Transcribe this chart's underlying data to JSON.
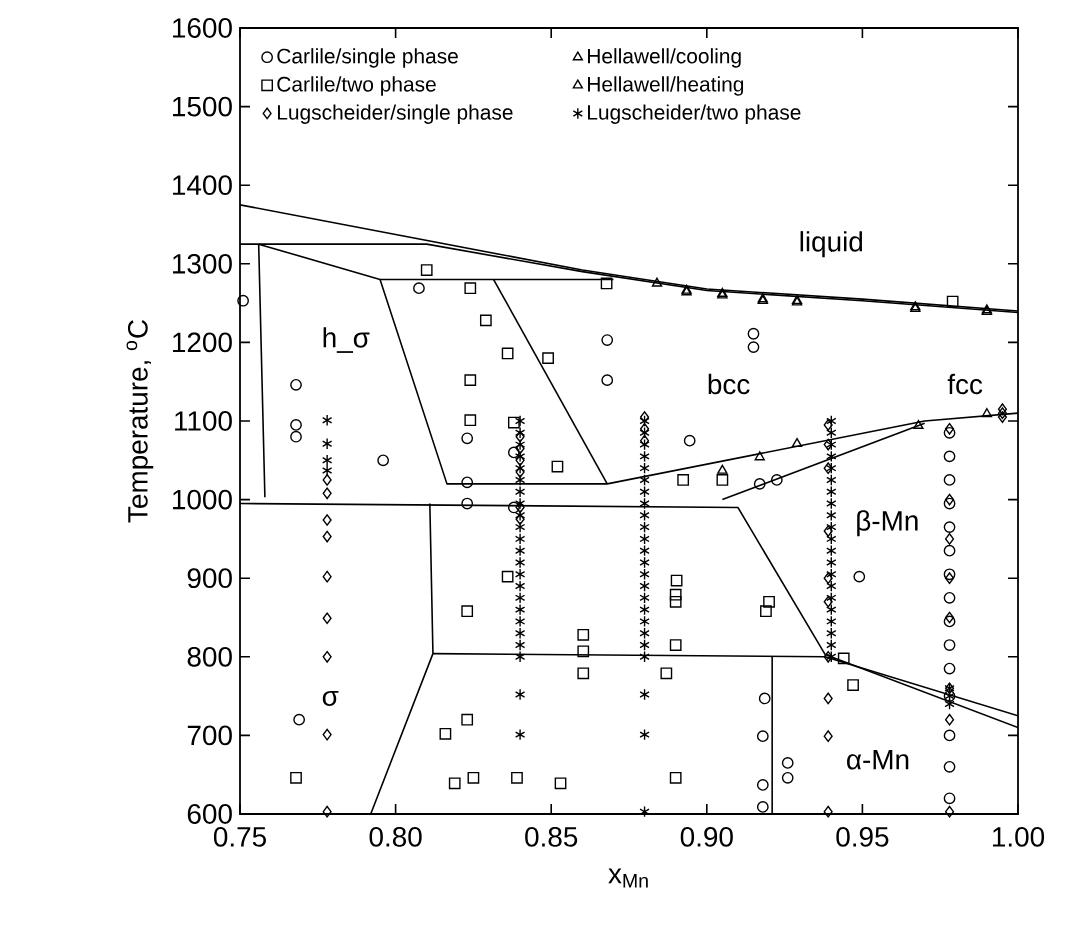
{
  "chart_data": {
    "type": "scatter",
    "xlabel": "x$_{Mn}$",
    "ylabel": "Temperature, $^{o}$C",
    "xlim": [
      0.75,
      1.0
    ],
    "ylim": [
      600,
      1600
    ],
    "xticks": [
      {
        "value": 0.75,
        "label": "0.75"
      },
      {
        "value": 0.8,
        "label": "0.80"
      },
      {
        "value": 0.85,
        "label": "0.85"
      },
      {
        "value": 0.9,
        "label": "0.90"
      },
      {
        "value": 0.95,
        "label": "0.95"
      },
      {
        "value": 1.0,
        "label": "1.00"
      }
    ],
    "yticks": [
      600,
      700,
      800,
      900,
      1000,
      1100,
      1200,
      1300,
      1400,
      1500,
      1600
    ],
    "legend": "top left",
    "grid": false,
    "series": [
      {
        "name": "Carlile/single phase",
        "marker": "circle",
        "color": "#000000",
        "x": [
          0.751,
          0.768,
          0.768,
          0.768,
          0.769,
          0.796,
          0.8075,
          0.823,
          0.823,
          0.823,
          0.838,
          0.838,
          0.868,
          0.868,
          0.915,
          0.915,
          0.8945,
          0.917,
          0.9225,
          0.949,
          0.9186,
          0.918,
          0.918,
          0.926,
          0.926,
          0.918,
          0.978,
          0.978,
          0.978,
          0.978,
          0.978,
          0.978,
          0.978,
          0.978,
          0.978,
          0.978,
          0.978,
          0.978,
          0.978,
          0.978,
          0.978
        ],
        "values": [
          1253,
          1146,
          1095,
          1080,
          720,
          1050,
          1269,
          1078,
          1022,
          995,
          1060,
          990,
          1203,
          1152,
          1211,
          1194,
          1075,
          1020,
          1025,
          902,
          747,
          699,
          637,
          665,
          646,
          609,
          1085,
          1055,
          1025,
          995,
          965,
          935,
          905,
          875,
          845,
          815,
          785,
          750,
          700,
          660,
          620
        ]
      },
      {
        "name": "Hellawell/cooling",
        "marker": "triangle",
        "color": "#000000",
        "x": [
          0.884,
          0.8935,
          0.905,
          0.918,
          0.929,
          0.967,
          0.99
        ],
        "values": [
          1275,
          1266,
          1262,
          1255,
          1253,
          1245,
          1241
        ]
      },
      {
        "name": "Carlile/two phase",
        "marker": "square",
        "color": "#000000",
        "x": [
          0.81,
          0.824,
          0.829,
          0.836,
          0.849,
          0.824,
          0.824,
          0.838,
          0.852,
          0.836,
          0.823,
          0.816,
          0.823,
          0.819,
          0.825,
          0.839,
          0.853,
          0.768,
          0.8678,
          0.979,
          0.8924,
          0.905,
          0.8903,
          0.89,
          0.92,
          0.8603,
          0.8603,
          0.8603,
          0.89,
          0.89,
          0.887,
          0.89,
          0.944,
          0.947,
          0.919
        ],
        "values": [
          1292,
          1269,
          1228,
          1186,
          1180,
          1152,
          1101,
          1098,
          1042,
          902,
          858,
          702,
          720,
          639,
          646,
          646,
          639,
          646,
          1275,
          1252,
          1025,
          1025,
          897,
          870,
          870,
          828,
          807,
          779,
          879,
          815,
          779,
          646,
          798,
          764,
          858
        ]
      },
      {
        "name": "Hellawell/heating",
        "marker": "triangle",
        "color": "#000000",
        "x": [
          0.8935,
          0.905,
          0.918,
          0.929,
          0.967,
          0.99,
          0.905,
          0.917,
          0.929,
          0.968,
          0.99
        ],
        "values": [
          1264,
          1260,
          1253,
          1251,
          1243,
          1239,
          1037,
          1054,
          1071,
          1094,
          1109
        ]
      },
      {
        "name": "Lugscheider/single phase",
        "marker": "diamond",
        "color": "#000000",
        "x": [
          0.778,
          0.778,
          0.778,
          0.778,
          0.778,
          0.778,
          0.778,
          0.778,
          0.778,
          0.84,
          0.84,
          0.84,
          0.84,
          0.84,
          0.84,
          0.88,
          0.88,
          0.88,
          0.939,
          0.939,
          0.939,
          0.939,
          0.939,
          0.939,
          0.939,
          0.939,
          0.939,
          0.939,
          0.978,
          0.978,
          0.978,
          0.978,
          0.978,
          0.978,
          0.978,
          0.978,
          0.995,
          0.995,
          0.995
        ],
        "values": [
          1025,
          1008,
          974,
          953,
          902,
          849,
          800,
          701,
          603,
          1080,
          1065,
          1050,
          1035,
          990,
          975,
          1105,
          1090,
          1075,
          1095,
          1070,
          1040,
          960,
          900,
          870,
          800,
          747,
          699,
          603,
          1090,
          1000,
          950,
          900,
          850,
          760,
          720,
          603,
          1105,
          1110,
          1115
        ]
      },
      {
        "name": "Lugscheider/two phase",
        "marker": "cross",
        "color": "#000000",
        "x": [
          0.778,
          0.778,
          0.778,
          0.778,
          0.84,
          0.84,
          0.84,
          0.84,
          0.84,
          0.84,
          0.84,
          0.84,
          0.84,
          0.84,
          0.84,
          0.84,
          0.84,
          0.84,
          0.84,
          0.84,
          0.84,
          0.84,
          0.84,
          0.84,
          0.84,
          0.84,
          0.84,
          0.88,
          0.88,
          0.88,
          0.88,
          0.88,
          0.88,
          0.88,
          0.88,
          0.88,
          0.88,
          0.88,
          0.88,
          0.88,
          0.88,
          0.88,
          0.88,
          0.88,
          0.88,
          0.88,
          0.88,
          0.88,
          0.88,
          0.88,
          0.88,
          0.94,
          0.94,
          0.94,
          0.94,
          0.94,
          0.94,
          0.94,
          0.94,
          0.94,
          0.94,
          0.94,
          0.94,
          0.94,
          0.94,
          0.94,
          0.94,
          0.94,
          0.94,
          0.94,
          0.94,
          0.94,
          0.978,
          0.978,
          0.978
        ],
        "values": [
          1101,
          1071,
          1050,
          1037,
          1100,
          1085,
          1070,
          1055,
          1040,
          1025,
          1010,
          995,
          980,
          965,
          950,
          935,
          920,
          905,
          890,
          875,
          860,
          845,
          830,
          815,
          800,
          752,
          701,
          1100,
          1085,
          1070,
          1055,
          1040,
          1025,
          1010,
          995,
          980,
          965,
          950,
          935,
          920,
          905,
          890,
          875,
          860,
          845,
          830,
          815,
          800,
          752,
          701,
          603,
          1100,
          1085,
          1070,
          1055,
          1040,
          1025,
          1010,
          995,
          980,
          965,
          950,
          935,
          920,
          905,
          890,
          875,
          860,
          845,
          830,
          815,
          800,
          760,
          750,
          740
        ]
      },
      {
        "type": "line",
        "marker": "none",
        "color": "#000000",
        "x": [
          0.75,
          0.86,
          0.9,
          0.95,
          1.0
        ],
        "values": [
          1375,
          1292,
          1268,
          1255,
          1240
        ]
      },
      {
        "type": "line",
        "marker": "none",
        "color": "#000000",
        "x": [
          0.75,
          0.81,
          0.86,
          0.9,
          0.95,
          1.0
        ],
        "values": [
          1325,
          1325,
          1290,
          1266,
          1253,
          1238
        ]
      },
      {
        "type": "line",
        "marker": "none",
        "color": "#000000",
        "x": [
          0.795,
          0.87
        ],
        "values": [
          1280,
          1280
        ]
      },
      {
        "type": "line",
        "marker": "none",
        "color": "#000000",
        "x": [
          0.756,
          0.795,
          0.8165,
          0.868,
          0.97,
          1.0
        ],
        "values": [
          1325,
          1280,
          1020,
          1020,
          1100,
          1110
        ]
      },
      {
        "type": "line",
        "marker": "none",
        "color": "#000000",
        "x": [
          0.756,
          0.758
        ],
        "values": [
          1325,
          1003
        ]
      },
      {
        "type": "line",
        "marker": "none",
        "color": "#000000",
        "x": [
          0.8315,
          0.868
        ],
        "values": [
          1280,
          1020
        ]
      },
      {
        "type": "line",
        "marker": "none",
        "color": "#000000",
        "x": [
          0.75,
          0.91,
          0.938,
          1.0
        ],
        "values": [
          995,
          990,
          803,
          710
        ]
      },
      {
        "type": "line",
        "marker": "none",
        "color": "#000000",
        "x": [
          0.905,
          0.97
        ],
        "values": [
          1000,
          1097
        ]
      },
      {
        "type": "line",
        "marker": "none",
        "color": "#000000",
        "x": [
          0.792,
          0.812,
          0.811
        ],
        "values": [
          600,
          804,
          995
        ]
      },
      {
        "type": "line",
        "marker": "none",
        "color": "#000000",
        "x": [
          0.812,
          0.938,
          1.0
        ],
        "values": [
          804,
          800,
          725
        ]
      },
      {
        "type": "line",
        "marker": "none",
        "color": "#000000",
        "x": [
          0.921,
          0.921
        ],
        "values": [
          800,
          600
        ]
      }
    ],
    "annotations": [
      "liquid",
      "h_σ",
      "bcc",
      "fcc",
      "β-Mn",
      "α-Mn",
      "σ"
    ]
  }
}
